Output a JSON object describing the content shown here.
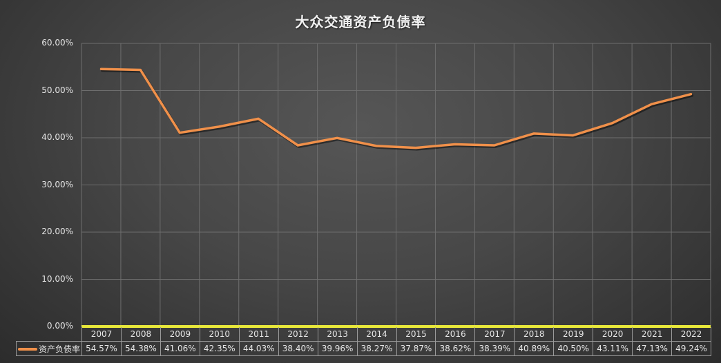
{
  "title": "大众交通资产负债率",
  "colors": {
    "line": "#f0904a",
    "axis_baseline": "#e8e83a",
    "grid": "#6e6e6e",
    "background": "#474747"
  },
  "y_ticks": [
    "60.00%",
    "50.00%",
    "40.00%",
    "30.00%",
    "20.00%",
    "10.00%",
    "0.00%"
  ],
  "data_table": {
    "series_label": "资产负债率",
    "years": [
      "2007",
      "2008",
      "2009",
      "2010",
      "2011",
      "2012",
      "2013",
      "2014",
      "2015",
      "2016",
      "2017",
      "2018",
      "2019",
      "2020",
      "2021",
      "2022"
    ],
    "values": [
      "54.57%",
      "54.38%",
      "41.06%",
      "42.35%",
      "44.03%",
      "38.40%",
      "39.96%",
      "38.27%",
      "37.87%",
      "38.62%",
      "38.39%",
      "40.89%",
      "40.50%",
      "43.11%",
      "47.13%",
      "49.24%"
    ]
  },
  "chart_data": {
    "type": "line",
    "title": "大众交通资产负债率",
    "xlabel": "",
    "ylabel": "",
    "categories": [
      "2007",
      "2008",
      "2009",
      "2010",
      "2011",
      "2012",
      "2013",
      "2014",
      "2015",
      "2016",
      "2017",
      "2018",
      "2019",
      "2020",
      "2021",
      "2022"
    ],
    "series": [
      {
        "name": "资产负债率",
        "values": [
          54.57,
          54.38,
          41.06,
          42.35,
          44.03,
          38.4,
          39.96,
          38.27,
          37.87,
          38.62,
          38.39,
          40.89,
          40.5,
          43.11,
          47.13,
          49.24
        ]
      }
    ],
    "ylim": [
      0,
      60
    ],
    "y_tick_step": 10,
    "y_format": "percent_2dp",
    "grid": true,
    "legend_position": "data-table",
    "data_table_shown": true
  }
}
